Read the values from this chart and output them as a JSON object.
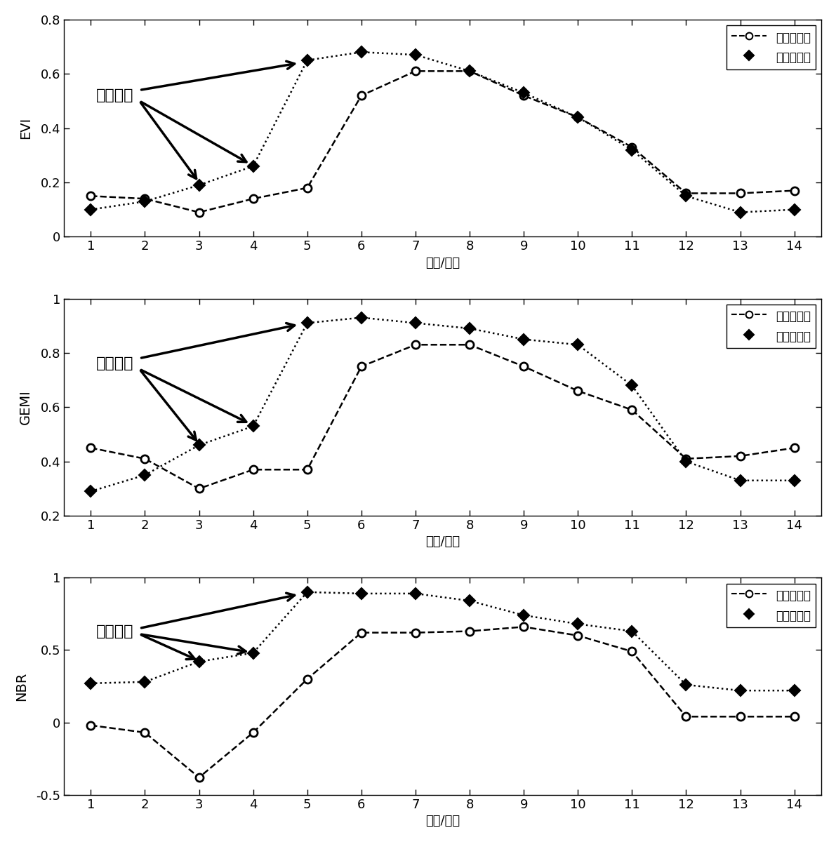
{
  "x": [
    1,
    2,
    3,
    4,
    5,
    6,
    7,
    8,
    9,
    10,
    11,
    12,
    13,
    14
  ],
  "evi_observed": [
    0.15,
    0.14,
    0.09,
    0.14,
    0.18,
    0.52,
    0.61,
    0.61,
    0.52,
    0.44,
    0.33,
    0.16,
    0.16,
    0.17
  ],
  "evi_predicted": [
    0.1,
    0.13,
    0.19,
    0.26,
    0.65,
    0.68,
    0.67,
    0.61,
    0.53,
    0.44,
    0.32,
    0.15,
    0.09,
    0.1
  ],
  "gemi_observed": [
    0.45,
    0.41,
    0.3,
    0.37,
    0.37,
    0.75,
    0.83,
    0.83,
    0.75,
    0.66,
    0.59,
    0.41,
    0.42,
    0.45
  ],
  "gemi_predicted": [
    0.29,
    0.35,
    0.46,
    0.53,
    0.91,
    0.93,
    0.91,
    0.89,
    0.85,
    0.83,
    0.68,
    0.4,
    0.33,
    0.33
  ],
  "nbr_observed": [
    -0.02,
    -0.07,
    -0.38,
    -0.07,
    0.3,
    0.62,
    0.62,
    0.63,
    0.66,
    0.6,
    0.49,
    0.04,
    0.04,
    0.04
  ],
  "nbr_predicted": [
    0.27,
    0.28,
    0.42,
    0.48,
    0.9,
    0.89,
    0.89,
    0.84,
    0.74,
    0.68,
    0.63,
    0.26,
    0.22,
    0.22
  ],
  "xlabel": "时间/时相",
  "ylabel_evi": "EVI",
  "ylabel_gemi": "GEMI",
  "ylabel_nbr": "NBR",
  "legend_observed": "实际观测値",
  "legend_predicted": "模型预测値",
  "annotation_text": "异常时刻",
  "evi_ylim": [
    0,
    0.8
  ],
  "gemi_ylim": [
    0.2,
    1.0
  ],
  "nbr_ylim": [
    -0.5,
    1.0
  ],
  "evi_yticks": [
    0,
    0.2,
    0.4,
    0.6,
    0.8
  ],
  "gemi_yticks": [
    0.2,
    0.4,
    0.6,
    0.8,
    1.0
  ],
  "nbr_yticks": [
    -0.5,
    0,
    0.5,
    1.0
  ]
}
